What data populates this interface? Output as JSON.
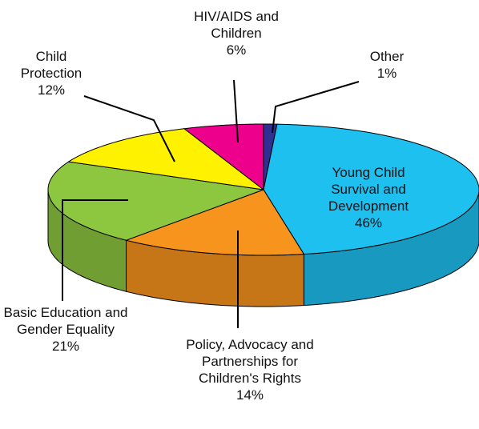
{
  "chart_data": {
    "type": "pie",
    "categories": [
      "Other",
      "Young Child Survival and Development",
      "Policy, Advocacy and Partnerships for Children's Rights",
      "Basic Education and Gender Equality",
      "Child Protection",
      "HIV/AIDS and Children"
    ],
    "values": [
      1,
      46,
      14,
      21,
      12,
      6
    ],
    "value_labels": [
      "1%",
      "46%",
      "14%",
      "21%",
      "12%",
      "6%"
    ],
    "colors": [
      "#2e3192",
      "#1ec0f0",
      "#f7941d",
      "#8dc63f",
      "#fff200",
      "#ec008c"
    ],
    "three_d": true
  }
}
